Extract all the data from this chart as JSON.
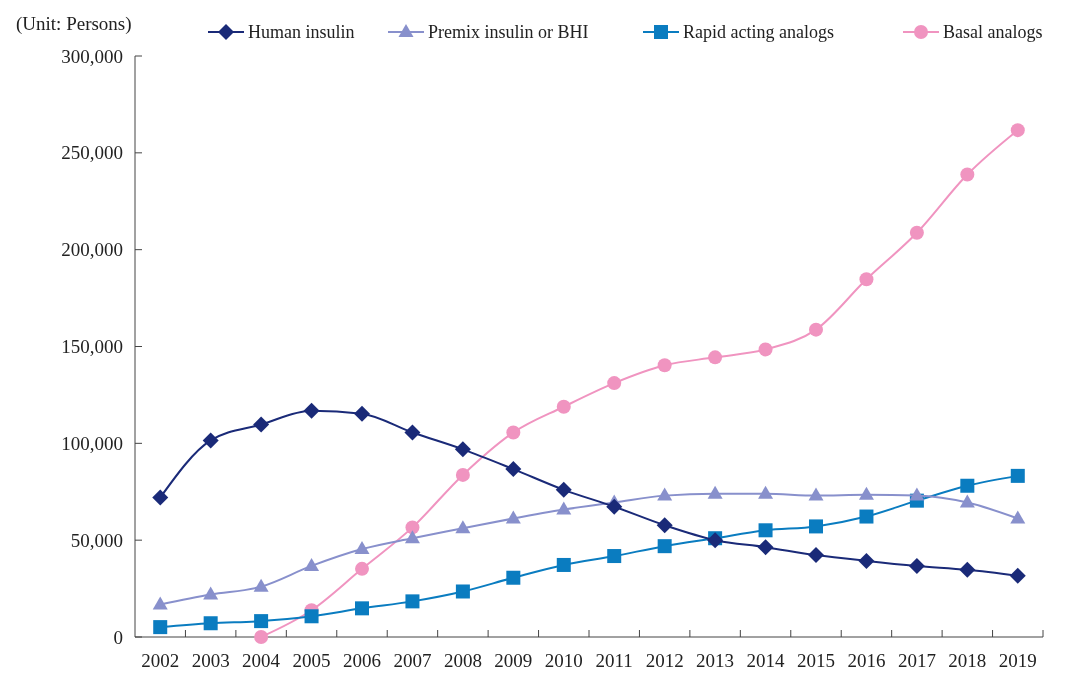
{
  "chart_data": {
    "type": "line",
    "ylabel": "(Unit: Persons)",
    "categories": [
      "2002",
      "2003",
      "2004",
      "2005",
      "2006",
      "2007",
      "2008",
      "2009",
      "2010",
      "2011",
      "2012",
      "2013",
      "2014",
      "2015",
      "2016",
      "2017",
      "2018",
      "2019"
    ],
    "ylim": [
      0,
      300000
    ],
    "yticks": [
      {
        "value": 0,
        "label": "0"
      },
      {
        "value": 50000,
        "label": "50,000"
      },
      {
        "value": 100000,
        "label": "100,000"
      },
      {
        "value": 150000,
        "label": "150,000"
      },
      {
        "value": 200000,
        "label": "200,000"
      },
      {
        "value": 250000,
        "label": "250,000"
      },
      {
        "value": 300000,
        "label": "300,000"
      }
    ],
    "grid": false,
    "legend": "top",
    "series": [
      {
        "name": "Human insulin",
        "color": "#1a2a78",
        "marker": "diamond",
        "values": [
          72000,
          101500,
          109700,
          116800,
          115300,
          105600,
          96900,
          86700,
          76000,
          67300,
          57700,
          50000,
          46400,
          42300,
          39300,
          36700,
          34700,
          31600
        ]
      },
      {
        "name": "Premix insulin or BHI",
        "color": "#8890cc",
        "marker": "triangle",
        "values": [
          16800,
          21900,
          26000,
          36700,
          45400,
          51000,
          56100,
          61200,
          65800,
          69400,
          73000,
          74000,
          74000,
          73000,
          73500,
          73000,
          69400,
          61200
        ]
      },
      {
        "name": "Rapid acting analogs",
        "color": "#0a7cc0",
        "marker": "square",
        "values": [
          5100,
          7100,
          8200,
          10700,
          14800,
          18400,
          23500,
          30600,
          37200,
          41800,
          46900,
          51000,
          55100,
          57100,
          62200,
          70400,
          78100,
          83200
        ]
      },
      {
        "name": "Basal analogs",
        "color": "#f094c0",
        "marker": "circle",
        "values": [
          null,
          null,
          0,
          13800,
          35200,
          56600,
          83700,
          105600,
          118900,
          131100,
          140300,
          144400,
          148500,
          158700,
          184700,
          208700,
          238800,
          261700
        ]
      }
    ]
  }
}
